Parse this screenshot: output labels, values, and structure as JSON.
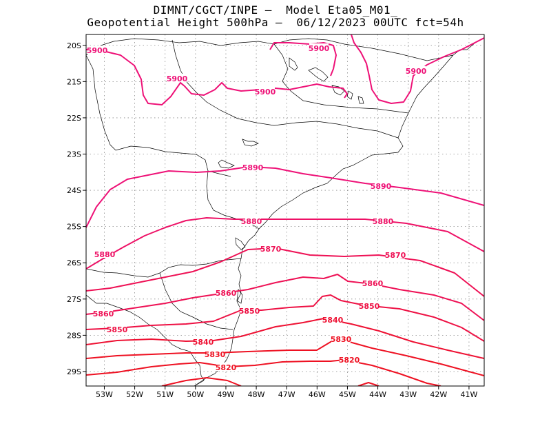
{
  "title": {
    "line1": "DIMNT/CGCT/INPE —  Model Eta05_M01_",
    "line2": "Geopotential Height 500hPa —  06/12/2023 00UTC fct=54h"
  },
  "colors": {
    "contour_high": "#ee1177",
    "contour_mid": "#ee1155",
    "contour_low": "#ee1122",
    "coast": "#000000",
    "grid": "#888888"
  },
  "axes": {
    "lon_labels": [
      "53W",
      "52W",
      "51W",
      "50W",
      "49W",
      "48W",
      "47W",
      "46W",
      "45W",
      "44W",
      "43W",
      "42W",
      "41W"
    ],
    "lat_labels": [
      "20S",
      "21S",
      "22S",
      "23S",
      "24S",
      "25S",
      "26S",
      "27S",
      "28S",
      "29S"
    ]
  },
  "chart_data": {
    "type": "map-contour",
    "variable": "Geopotential Height 500hPa",
    "lon_range": [
      -53.6,
      -40.5
    ],
    "lat_range": [
      -29.4,
      -19.7
    ],
    "grid": true,
    "contours": [
      {
        "value": 5900,
        "label": "5900",
        "color": "#ee1177"
      },
      {
        "value": 5890,
        "label": "5890",
        "color": "#ee1177"
      },
      {
        "value": 5880,
        "label": "5880",
        "color": "#ee1166"
      },
      {
        "value": 5870,
        "label": "5870",
        "color": "#ee1155"
      },
      {
        "value": 5860,
        "label": "5860",
        "color": "#ee1155"
      },
      {
        "value": 5850,
        "label": "5850",
        "color": "#ee1144"
      },
      {
        "value": 5840,
        "label": "5840",
        "color": "#ee1133"
      },
      {
        "value": 5830,
        "label": "5830",
        "color": "#ee1122"
      },
      {
        "value": 5820,
        "label": "5820",
        "color": "#ee1122"
      }
    ]
  }
}
